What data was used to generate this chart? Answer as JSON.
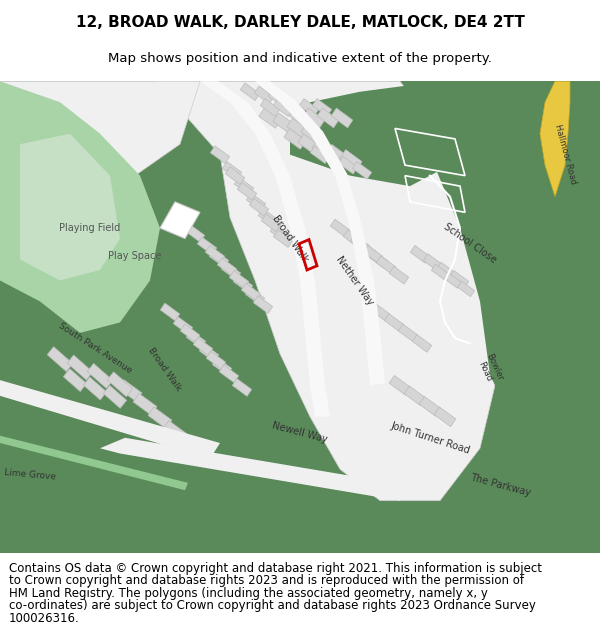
{
  "title_line1": "12, BROAD WALK, DARLEY DALE, MATLOCK, DE4 2TT",
  "title_line2": "Map shows position and indicative extent of the property.",
  "copyright_lines": [
    "Contains OS data © Crown copyright and database right 2021. This information is subject",
    "to Crown copyright and database rights 2023 and is reproduced with the permission of",
    "HM Land Registry. The polygons (including the associated geometry, namely x, y",
    "co-ordinates) are subject to Crown copyright and database rights 2023 Ordnance Survey",
    "100026316."
  ],
  "title_fontsize": 11,
  "subtitle_fontsize": 9.5,
  "copyright_fontsize": 8.5,
  "map_bg_color": "#5a8a5a",
  "light_green_color": "#a8d4a8",
  "plot_outline_color": "#cc0000",
  "plot_linewidth": 2.0,
  "figure_bg": "#ffffff"
}
